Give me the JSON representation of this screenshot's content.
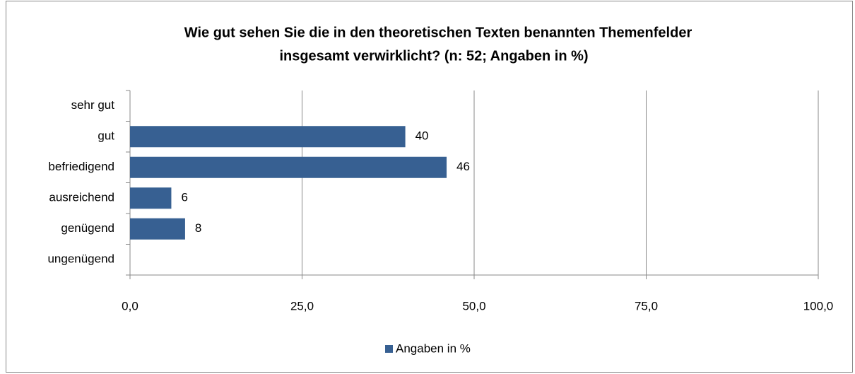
{
  "chart_data": {
    "type": "hbar",
    "title": [
      "Wie gut sehen Sie die in den theoretischen Texten benannten Themenfelder",
      "insgesamt verwirklicht?  (n: 52; Angaben in %)"
    ],
    "categories": [
      "sehr gut",
      "gut",
      "befriedigend",
      "ausreichend",
      "genügend",
      "ungenügend"
    ],
    "series": [
      {
        "name": "Angaben in %",
        "color": "#376092",
        "values": [
          null,
          40,
          46,
          6,
          8,
          null
        ]
      }
    ],
    "xlim": [
      0,
      100
    ],
    "xticks": [
      {
        "value": 0,
        "label": "0,0"
      },
      {
        "value": 25,
        "label": "25,0"
      },
      {
        "value": 50,
        "label": "50,0"
      },
      {
        "value": 75,
        "label": "75,0"
      },
      {
        "value": 100,
        "label": "100,0"
      }
    ],
    "grid": true,
    "legend": "bottom"
  }
}
